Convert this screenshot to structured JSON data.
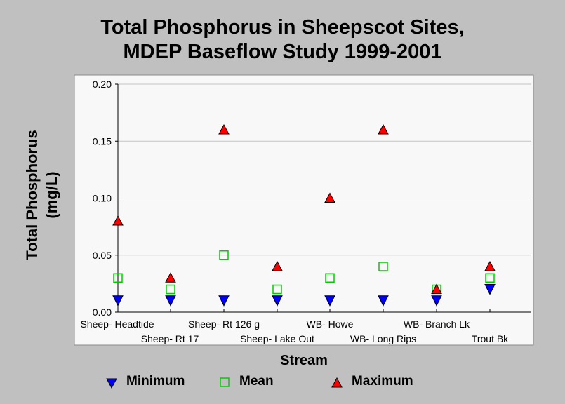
{
  "chart_data": {
    "type": "scatter",
    "title_lines": [
      "Total Phosphorus in Sheepscot Sites,",
      "MDEP Baseflow Study 1999-2001"
    ],
    "xlabel": "Stream",
    "ylabel_lines": [
      "Total Phosphorus",
      "(mg/L)"
    ],
    "ylim": [
      0,
      0.2
    ],
    "yticks": [
      "0.00",
      "0.05",
      "0.10",
      "0.15",
      "0.20"
    ],
    "grid": true,
    "legend_position": "bottom",
    "categories": [
      "Sheep- Headtide",
      "Sheep- Rt 17",
      "Sheep- Rt 126 g",
      "Sheep- Lake Out",
      "WB- Howe",
      "WB- Long Rips",
      "WB- Branch Lk",
      "Trout Bk"
    ],
    "series": [
      {
        "name": "Minimum",
        "marker": "triangle-down",
        "color": "#0000ff",
        "values": [
          0.01,
          0.01,
          0.01,
          0.01,
          0.01,
          0.01,
          0.01,
          0.02
        ]
      },
      {
        "name": "Mean",
        "marker": "square-open",
        "color": "#00cc00",
        "values": [
          0.03,
          0.02,
          0.05,
          0.02,
          0.03,
          0.04,
          0.02,
          0.03
        ]
      },
      {
        "name": "Maximum",
        "marker": "triangle-up",
        "color": "#ff0000",
        "values": [
          0.08,
          0.03,
          0.16,
          0.04,
          0.1,
          0.16,
          0.02,
          0.04
        ]
      }
    ]
  }
}
